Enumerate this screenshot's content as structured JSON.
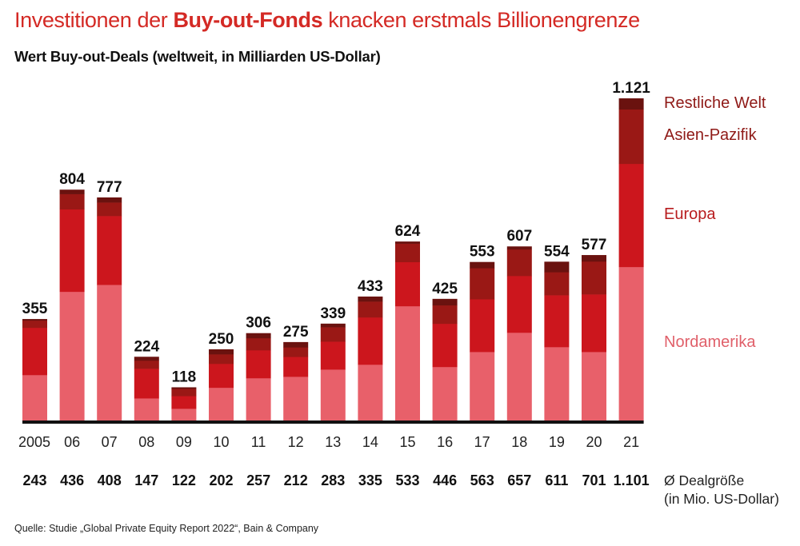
{
  "title": {
    "prefix": "Investitionen der ",
    "highlight": "Buy-out-Fonds",
    "suffix": " knacken erstmals Billionengrenze"
  },
  "subtitle": "Wert Buy-out-Deals (weltweit, in Milliarden US-Dollar)",
  "deal_size": {
    "label_line1": "Ø Dealgröße",
    "label_line2": "(in Mio. US-Dollar)",
    "values": [
      "243",
      "436",
      "408",
      "147",
      "122",
      "202",
      "257",
      "212",
      "283",
      "335",
      "533",
      "446",
      "563",
      "657",
      "611",
      "701",
      "1.101"
    ]
  },
  "source": "Quelle: Studie „Global Private Equity Report 2022“, Bain & Company",
  "colors": {
    "nordamerika": "#e8606a",
    "europa": "#cc161d",
    "asien_pazifik": "#9a1815",
    "restliche_welt": "#6a120f",
    "legend_dark": "#8f1a17",
    "legend_europa": "#b81c1e",
    "legend_nordamerika": "#e0606a",
    "axis": "#111111"
  },
  "chart_data": {
    "type": "bar",
    "stacked": true,
    "title": "Investitionen der Buy-out-Fonds knacken erstmals Billionengrenze",
    "subtitle": "Wert Buy-out-Deals (weltweit, in Milliarden US-Dollar)",
    "xlabel": "",
    "ylabel": "",
    "ylim": [
      0,
      1121
    ],
    "grid": false,
    "legend_position": "right",
    "categories": [
      "2005",
      "06",
      "07",
      "08",
      "09",
      "10",
      "11",
      "12",
      "13",
      "14",
      "15",
      "16",
      "17",
      "18",
      "19",
      "20",
      "21"
    ],
    "totals": [
      355,
      804,
      777,
      224,
      118,
      250,
      306,
      275,
      339,
      433,
      624,
      425,
      553,
      607,
      554,
      577,
      1121
    ],
    "total_labels": [
      "355",
      "804",
      "777",
      "224",
      "118",
      "250",
      "306",
      "275",
      "339",
      "433",
      "624",
      "425",
      "553",
      "607",
      "554",
      "577",
      "1.121"
    ],
    "series": [
      {
        "name": "Nordamerika",
        "values": [
          161,
          450,
          474,
          80,
          44,
          117,
          150,
          155,
          180,
          197,
          400,
          189,
          241,
          308,
          258,
          241,
          536
        ]
      },
      {
        "name": "Europa",
        "values": [
          164,
          286,
          239,
          103,
          44,
          83,
          97,
          69,
          97,
          164,
          153,
          150,
          183,
          197,
          180,
          200,
          358
        ]
      },
      {
        "name": "Asien-Pazifik",
        "values": [
          25,
          53,
          47,
          28,
          25,
          33,
          42,
          33,
          50,
          55,
          64,
          64,
          108,
          92,
          80,
          114,
          189
        ]
      },
      {
        "name": "Restliche Welt",
        "values": [
          5,
          15,
          17,
          13,
          5,
          17,
          17,
          18,
          12,
          17,
          7,
          22,
          21,
          10,
          36,
          22,
          38
        ]
      }
    ],
    "secondary_row": {
      "label": "Ø Dealgröße (in Mio. US-Dollar)",
      "values": [
        243,
        436,
        408,
        147,
        122,
        202,
        257,
        212,
        283,
        335,
        533,
        446,
        563,
        657,
        611,
        701,
        1101
      ]
    }
  }
}
